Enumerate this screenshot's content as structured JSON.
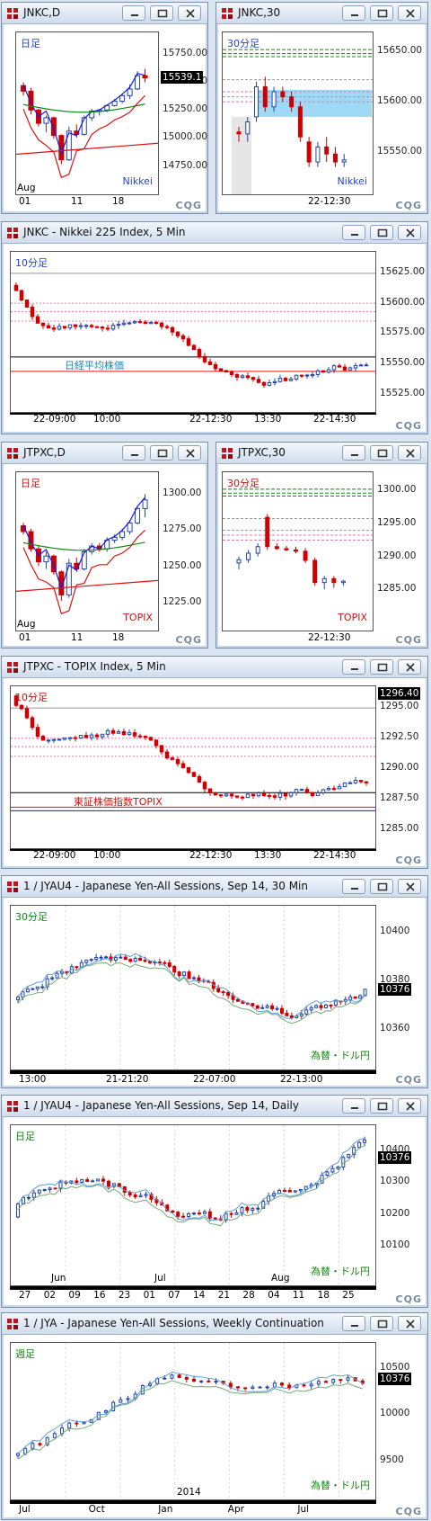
{
  "colors": {
    "up": "#2244aa",
    "down": "#cc0000",
    "blue": "#1a1ae6",
    "green": "#118811",
    "red": "#dd1111",
    "grid": "#d8d8d8"
  },
  "windows": [
    {
      "id": "w1",
      "title": "JNKC,D",
      "tag": "日足",
      "tagColor": "#2244cc",
      "brand": "Nikkei",
      "brandColor": "#2244cc",
      "type": "candles",
      "yLabels": [
        "15750.00",
        "15500.00",
        "15250.00",
        "15000.00",
        "14750.00"
      ],
      "last": "15539.1",
      "xLabels": [
        "Aug",
        "01",
        "11",
        "18"
      ],
      "data": [
        [
          15470,
          15500,
          15380,
          15420
        ],
        [
          15420,
          15450,
          15210,
          15250
        ],
        [
          15250,
          15260,
          15100,
          15130
        ],
        [
          15130,
          15200,
          15050,
          15180
        ],
        [
          15180,
          15190,
          14990,
          15020
        ],
        [
          15020,
          15030,
          14760,
          14800
        ],
        [
          14800,
          15100,
          14790,
          15060
        ],
        [
          15060,
          15120,
          15000,
          15030
        ],
        [
          15030,
          15200,
          15020,
          15180
        ],
        [
          15180,
          15260,
          15150,
          15240
        ],
        [
          15240,
          15260,
          15200,
          15250
        ],
        [
          15250,
          15300,
          15230,
          15290
        ],
        [
          15290,
          15350,
          15280,
          15330
        ],
        [
          15330,
          15400,
          15310,
          15380
        ],
        [
          15380,
          15480,
          15350,
          15440
        ],
        [
          15440,
          15600,
          15430,
          15560
        ],
        [
          15560,
          15620,
          15500,
          15540
        ]
      ]
    },
    {
      "id": "w2",
      "title": "JNKC,30",
      "tag": "30分足",
      "tagColor": "#2244cc",
      "brand": "Nikkei",
      "brandColor": "#2244cc",
      "type": "candles30",
      "yLabels": [
        "15650.00",
        "15600.00",
        "15550.00"
      ],
      "xLabels": [
        "22-12:30"
      ],
      "data": [
        [
          15570,
          15575,
          15560,
          15568
        ],
        [
          15568,
          15585,
          15560,
          15580
        ],
        [
          15585,
          15620,
          15580,
          15615
        ],
        [
          15615,
          15625,
          15590,
          15595
        ],
        [
          15595,
          15615,
          15590,
          15610
        ],
        [
          15610,
          15615,
          15600,
          15605
        ],
        [
          15605,
          15610,
          15590,
          15595
        ],
        [
          15595,
          15600,
          15560,
          15565
        ],
        [
          15560,
          15565,
          15535,
          15540
        ],
        [
          15540,
          15560,
          15535,
          15555
        ],
        [
          15555,
          15565,
          15540,
          15548
        ],
        [
          15548,
          15555,
          15535,
          15540
        ],
        [
          15540,
          15548,
          15535,
          15542
        ]
      ]
    },
    {
      "id": "w3",
      "title": "JNKC - Nikkei 225 Index, 5 Min",
      "tag": "10分足",
      "tagColor": "#2244cc",
      "brand": "日経平均株価",
      "brandColor": "#1a8ab8",
      "type": "candles5",
      "yLabels": [
        "15625.00",
        "15600.00",
        "15575.00",
        "15550.00",
        "15525.00"
      ],
      "xLabels": [
        "22-09:00",
        "10:00",
        "22-12:30",
        "13:30",
        "22-14:30"
      ]
    },
    {
      "id": "w4",
      "title": "JTPXC,D",
      "tag": "日足",
      "tagColor": "#cc1111",
      "brand": "TOPIX",
      "brandColor": "#cc1111",
      "type": "candles",
      "yLabels": [
        "1300.00",
        "1275.00",
        "1250.00",
        "1225.00"
      ],
      "xLabels": [
        "Aug",
        "01",
        "11",
        "18"
      ],
      "data": [
        [
          1278,
          1280,
          1272,
          1274
        ],
        [
          1274,
          1276,
          1260,
          1262
        ],
        [
          1262,
          1264,
          1250,
          1253
        ],
        [
          1253,
          1260,
          1248,
          1257
        ],
        [
          1257,
          1258,
          1244,
          1246
        ],
        [
          1246,
          1247,
          1226,
          1230
        ],
        [
          1230,
          1255,
          1228,
          1252
        ],
        [
          1252,
          1256,
          1246,
          1248
        ],
        [
          1248,
          1262,
          1247,
          1260
        ],
        [
          1260,
          1266,
          1258,
          1264
        ],
        [
          1264,
          1266,
          1260,
          1262
        ],
        [
          1262,
          1270,
          1260,
          1268
        ],
        [
          1268,
          1272,
          1266,
          1270
        ],
        [
          1270,
          1276,
          1268,
          1274
        ],
        [
          1274,
          1282,
          1272,
          1280
        ],
        [
          1280,
          1292,
          1279,
          1290
        ],
        [
          1290,
          1300,
          1284,
          1296
        ]
      ]
    },
    {
      "id": "w5",
      "title": "JTPXC,30",
      "tag": "30分足",
      "tagColor": "#cc1111",
      "brand": "TOPIX",
      "brandColor": "#cc1111",
      "type": "candles30",
      "yLabels": [
        "1300.00",
        "1295.00",
        "1290.00",
        "1285.00"
      ],
      "xLabels": [
        "22-12:30"
      ],
      "data": [
        [
          1289,
          1290,
          1288,
          1289.5
        ],
        [
          1289.5,
          1291,
          1289,
          1290.5
        ],
        [
          1290.5,
          1292,
          1290,
          1291.5
        ],
        [
          1296,
          1296.5,
          1291,
          1291.5
        ],
        [
          1291.5,
          1292,
          1291,
          1291.2
        ],
        [
          1291.2,
          1291.6,
          1290.8,
          1291
        ],
        [
          1291,
          1291.5,
          1290.5,
          1290.8
        ],
        [
          1290.8,
          1291.3,
          1289,
          1289.4
        ],
        [
          1289.4,
          1289.8,
          1285.5,
          1286
        ],
        [
          1286,
          1287,
          1285,
          1286.6
        ],
        [
          1286.6,
          1287,
          1285.2,
          1286
        ],
        [
          1286,
          1286.4,
          1285.5,
          1286.2
        ]
      ]
    },
    {
      "id": "w6",
      "title": "JTPXC - TOPIX Index, 5 Min",
      "tag": "10分足",
      "tagColor": "#cc1111",
      "brand": "東証株価指数TOPIX",
      "brandColor": "#cc1111",
      "type": "candles5",
      "yLabels": [
        "1295.00",
        "1292.50",
        "1290.00",
        "1287.50",
        "1285.00"
      ],
      "last": "1296.40",
      "xLabels": [
        "22-09:00",
        "10:00",
        "22-12:30",
        "13:30",
        "22-14:30"
      ]
    },
    {
      "id": "w7",
      "title": "1 / JYAU4 - Japanese Yen-All Sessions, Sep 14, 30 Min",
      "tag": "30分足",
      "tagColor": "#118811",
      "brand": "為替・ドル円",
      "brandColor": "#118811",
      "type": "fx",
      "yLabels": [
        "10400",
        "10380",
        "10360"
      ],
      "last": "10376",
      "xLabels": [
        "13:00",
        "21-21:20",
        "22-07:00",
        "22-13:00"
      ]
    },
    {
      "id": "w8",
      "title": "1 / JYAU4 - Japanese Yen-All Sessions, Sep 14, Daily",
      "tag": "日足",
      "tagColor": "#118811",
      "brand": "為替・ドル円",
      "brandColor": "#118811",
      "type": "fx",
      "yLabels": [
        "10400",
        "10300",
        "10200",
        "10100"
      ],
      "last": "10376",
      "xLabels": [
        "27",
        "02",
        "09",
        "16",
        "23",
        "01",
        "07",
        "14",
        "21",
        "28",
        "04",
        "11",
        "18",
        "25"
      ],
      "monthLabels": [
        "Jun",
        "Jul",
        "Aug"
      ]
    },
    {
      "id": "w9",
      "title": "1 / JYA - Japanese Yen-All Sessions, Weekly Continuation",
      "tag": "週足",
      "tagColor": "#118811",
      "brand": "為替・ドル円",
      "brandColor": "#118811",
      "type": "fx",
      "yLabels": [
        "10500",
        "10000",
        "9500"
      ],
      "last": "10376",
      "xLabels": [
        "Jul",
        "Oct",
        "Jan",
        "Apr",
        "Jul"
      ],
      "yearLabel": "2014"
    }
  ]
}
